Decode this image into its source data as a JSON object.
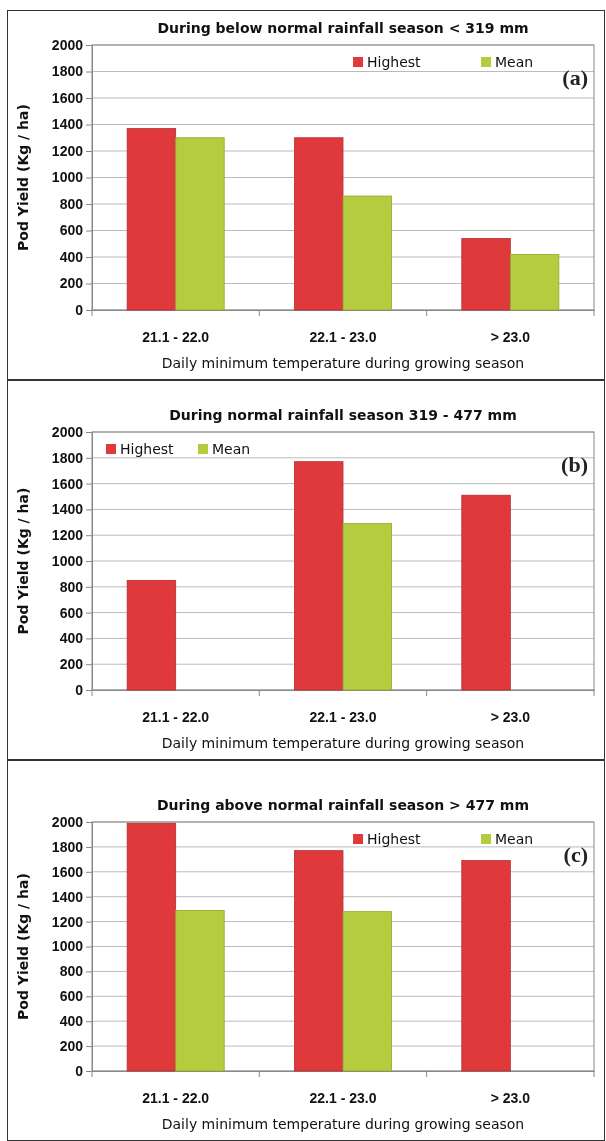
{
  "chart_data": [
    {
      "type": "bar",
      "title": "During below normal rainfall season < 319 mm",
      "xlabel": "Daily minimum temperature  during growing season",
      "ylabel": "Pod Yield (Kg / ha)",
      "categories": [
        "21.1 - 22.0",
        "22.1 - 23.0",
        "> 23.0"
      ],
      "series": [
        {
          "name": "Highest",
          "color": "#e0393b",
          "values": [
            1370,
            1300,
            540
          ]
        },
        {
          "name": "Mean",
          "color": "#b5cc3e",
          "values": [
            1300,
            860,
            420
          ]
        }
      ],
      "ylim": [
        0,
        2000
      ],
      "yticks": [
        0,
        200,
        400,
        600,
        800,
        1000,
        1200,
        1400,
        1600,
        1800,
        2000
      ],
      "grid": "y",
      "legend": "top right",
      "annotations": [
        "(a)"
      ]
    },
    {
      "type": "bar",
      "title": "During normal rainfall season 319 - 477 mm",
      "xlabel": "Daily minimum temperature  during growing season",
      "ylabel": "Pod Yield (Kg / ha)",
      "categories": [
        "21.1 - 22.0",
        "22.1 - 23.0",
        "> 23.0"
      ],
      "series": [
        {
          "name": "Highest",
          "color": "#e0393b",
          "values": [
            850,
            1770,
            1510
          ]
        },
        {
          "name": "Mean",
          "color": "#b5cc3e",
          "values": [
            null,
            1290,
            null
          ]
        }
      ],
      "ylim": [
        0,
        2000
      ],
      "yticks": [
        0,
        200,
        400,
        600,
        800,
        1000,
        1200,
        1400,
        1600,
        1800,
        2000
      ],
      "grid": "y",
      "legend": "top left",
      "annotations": [
        "(b)"
      ]
    },
    {
      "type": "bar",
      "title": "During above normal rainfall season > 477 mm",
      "xlabel": "Daily minimum temperature  during growing season",
      "ylabel": "Pod Yield (Kg / ha)",
      "categories": [
        "21.1 - 22.0",
        "22.1 - 23.0",
        "> 23.0"
      ],
      "series": [
        {
          "name": "Highest",
          "color": "#e0393b",
          "values": [
            1990,
            1770,
            1690
          ]
        },
        {
          "name": "Mean",
          "color": "#b5cc3e",
          "values": [
            1290,
            1280,
            null
          ]
        }
      ],
      "ylim": [
        0,
        2000
      ],
      "yticks": [
        0,
        200,
        400,
        600,
        800,
        1000,
        1200,
        1400,
        1600,
        1800,
        2000
      ],
      "grid": "y",
      "legend": "top right",
      "annotations": [
        "(c)"
      ]
    }
  ]
}
